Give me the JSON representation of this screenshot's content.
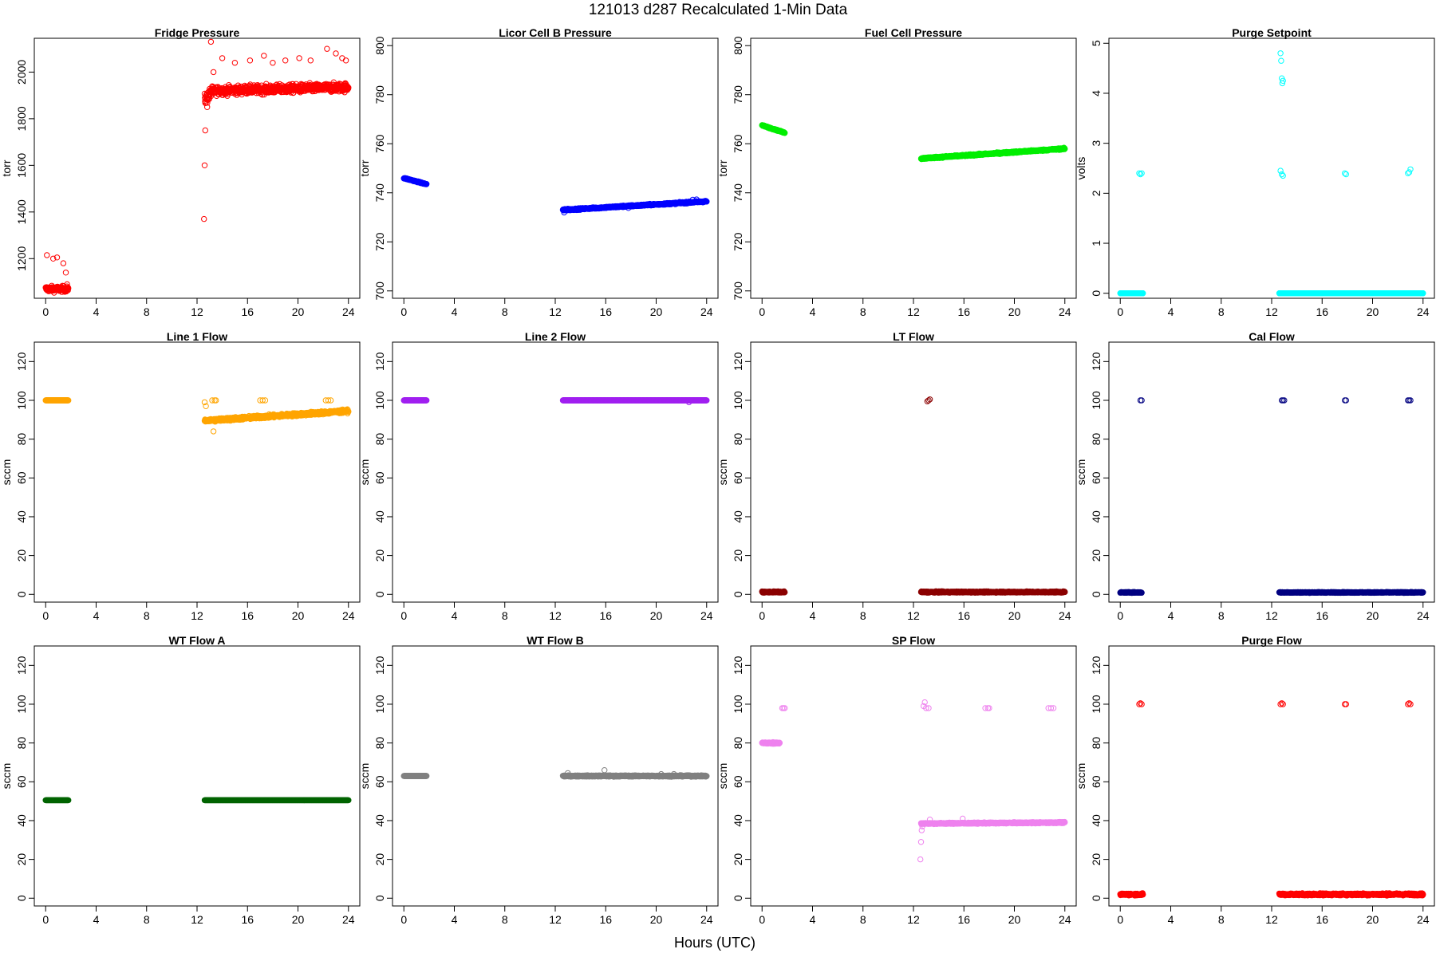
{
  "figure": {
    "title": "121013   d287   Recalculated 1-Min Data",
    "xlabel": "Hours (UTC)"
  },
  "chart_data": [
    {
      "type": "scatter",
      "title": "Fridge Pressure",
      "ylabel": "torr",
      "color": "#ff0000",
      "xlim": [
        -0.9,
        24.9
      ],
      "ylim": [
        1030,
        2145
      ],
      "xticks": [
        0,
        4,
        8,
        12,
        16,
        20,
        24
      ],
      "yticks": [
        1200,
        1400,
        1600,
        1800,
        2000
      ],
      "segments": [
        {
          "x0": 0.0,
          "x1": 1.8,
          "base": 1070,
          "drift": 0,
          "noise": 12,
          "outliers": [
            [
              0.1,
              1215
            ],
            [
              0.6,
              1200
            ],
            [
              0.9,
              1205
            ],
            [
              1.4,
              1180
            ],
            [
              1.6,
              1140
            ],
            [
              1.7,
              1090
            ]
          ]
        },
        {
          "x0": 12.6,
          "x1": 13.1,
          "base": 1880,
          "drift": 30,
          "noise": 25,
          "outliers": [
            [
              12.55,
              1370
            ],
            [
              12.6,
              1600
            ],
            [
              12.65,
              1750
            ],
            [
              12.8,
              1850
            ],
            [
              13.1,
              2130
            ],
            [
              13.3,
              2000
            ]
          ]
        },
        {
          "x0": 13.1,
          "x1": 24.0,
          "base": 1920,
          "drift": 15,
          "noise": 18,
          "outliers": [
            [
              14.0,
              2060
            ],
            [
              15.0,
              2040
            ],
            [
              16.2,
              2050
            ],
            [
              17.3,
              2070
            ],
            [
              18.0,
              2040
            ],
            [
              19.0,
              2050
            ],
            [
              20.1,
              2060
            ],
            [
              21.0,
              2050
            ],
            [
              22.3,
              2100
            ],
            [
              23.0,
              2080
            ],
            [
              23.5,
              2060
            ],
            [
              23.8,
              2050
            ]
          ]
        }
      ]
    },
    {
      "type": "scatter",
      "title": "Licor Cell B Pressure",
      "ylabel": "torr",
      "color": "#0000ff",
      "xlim": [
        -0.9,
        24.9
      ],
      "ylim": [
        697,
        803
      ],
      "xticks": [
        0,
        4,
        8,
        12,
        16,
        20,
        24
      ],
      "yticks": [
        700,
        720,
        740,
        760,
        780,
        800
      ],
      "segments": [
        {
          "x0": 0.0,
          "x1": 1.8,
          "base": 746,
          "drift": -2.5,
          "noise": 0.2,
          "outliers": []
        },
        {
          "x0": 12.6,
          "x1": 24.0,
          "base": 733,
          "drift": 3.5,
          "noise": 0.3,
          "outliers": [
            [
              12.7,
              732
            ],
            [
              13.0,
              733.5
            ],
            [
              17.8,
              733.8
            ],
            [
              22.9,
              737.2
            ],
            [
              23.2,
              737.3
            ]
          ]
        }
      ]
    },
    {
      "type": "scatter",
      "title": "Fuel Cell Pressure",
      "ylabel": "torr",
      "color": "#00ee00",
      "xlim": [
        -0.9,
        24.9
      ],
      "ylim": [
        697,
        803
      ],
      "xticks": [
        0,
        4,
        8,
        12,
        16,
        20,
        24
      ],
      "yticks": [
        700,
        720,
        740,
        760,
        780,
        800
      ],
      "segments": [
        {
          "x0": 0.0,
          "x1": 1.8,
          "base": 767.5,
          "drift": -3,
          "noise": 0.2,
          "outliers": []
        },
        {
          "x0": 12.6,
          "x1": 24.0,
          "base": 754,
          "drift": 4,
          "noise": 0.3,
          "outliers": []
        }
      ]
    },
    {
      "type": "scatter",
      "title": "Purge Setpoint",
      "ylabel": "volts",
      "color": "#00ffff",
      "xlim": [
        -0.9,
        24.9
      ],
      "ylim": [
        -0.1,
        5.1
      ],
      "xticks": [
        0,
        4,
        8,
        12,
        16,
        20,
        24
      ],
      "yticks": [
        0,
        1,
        2,
        3,
        4,
        5
      ],
      "segments": [
        {
          "x0": 0.0,
          "x1": 1.8,
          "base": 0.0,
          "drift": 0,
          "noise": 0,
          "outliers": [
            [
              1.5,
              2.4
            ],
            [
              1.6,
              2.38
            ],
            [
              1.7,
              2.4
            ]
          ]
        },
        {
          "x0": 12.6,
          "x1": 24.0,
          "base": 0.0,
          "drift": 0,
          "noise": 0,
          "outliers": [
            [
              12.7,
              4.8
            ],
            [
              12.75,
              4.65
            ],
            [
              12.8,
              4.3
            ],
            [
              12.85,
              4.2
            ],
            [
              12.9,
              4.25
            ],
            [
              12.7,
              2.45
            ],
            [
              12.8,
              2.38
            ],
            [
              12.9,
              2.35
            ],
            [
              17.8,
              2.4
            ],
            [
              17.9,
              2.38
            ],
            [
              22.8,
              2.4
            ],
            [
              22.9,
              2.42
            ],
            [
              23.0,
              2.48
            ]
          ]
        }
      ]
    },
    {
      "type": "scatter",
      "title": "Line 1 Flow",
      "ylabel": "sccm",
      "color": "#ffa500",
      "xlim": [
        -0.9,
        24.9
      ],
      "ylim": [
        -4,
        130
      ],
      "xticks": [
        0,
        4,
        8,
        12,
        16,
        20,
        24
      ],
      "yticks": [
        0,
        20,
        40,
        60,
        80,
        100,
        120
      ],
      "segments": [
        {
          "x0": 0.0,
          "x1": 1.8,
          "base": 100,
          "drift": 0,
          "noise": 0,
          "outliers": []
        },
        {
          "x0": 12.6,
          "x1": 24.0,
          "base": 89.5,
          "drift": 5,
          "noise": 0.8,
          "outliers": [
            [
              12.6,
              99
            ],
            [
              12.7,
              97
            ],
            [
              12.65,
              90
            ],
            [
              13.3,
              84
            ],
            [
              13.2,
              100
            ],
            [
              13.4,
              100
            ],
            [
              13.5,
              100
            ],
            [
              17.0,
              100
            ],
            [
              17.2,
              100
            ],
            [
              17.4,
              100
            ],
            [
              22.2,
              100
            ],
            [
              22.4,
              100
            ],
            [
              22.6,
              100
            ]
          ]
        }
      ]
    },
    {
      "type": "scatter",
      "title": "Line 2 Flow",
      "ylabel": "sccm",
      "color": "#a020f0",
      "xlim": [
        -0.9,
        24.9
      ],
      "ylim": [
        -4,
        130
      ],
      "xticks": [
        0,
        4,
        8,
        12,
        16,
        20,
        24
      ],
      "yticks": [
        0,
        20,
        40,
        60,
        80,
        100,
        120
      ],
      "segments": [
        {
          "x0": 0.0,
          "x1": 1.8,
          "base": 100,
          "drift": 0,
          "noise": 0,
          "outliers": []
        },
        {
          "x0": 12.6,
          "x1": 24.0,
          "base": 100,
          "drift": 0,
          "noise": 0,
          "outliers": [
            [
              22.6,
              99
            ]
          ]
        }
      ]
    },
    {
      "type": "scatter",
      "title": "LT Flow",
      "ylabel": "sccm",
      "color": "#8b0000",
      "xlim": [
        -0.9,
        24.9
      ],
      "ylim": [
        -4,
        130
      ],
      "xticks": [
        0,
        4,
        8,
        12,
        16,
        20,
        24
      ],
      "yticks": [
        0,
        20,
        40,
        60,
        80,
        100,
        120
      ],
      "segments": [
        {
          "x0": 0.0,
          "x1": 1.8,
          "base": 1.2,
          "drift": 0,
          "noise": 0.3,
          "outliers": []
        },
        {
          "x0": 12.6,
          "x1": 24.0,
          "base": 1.2,
          "drift": 0,
          "noise": 0.3,
          "outliers": [
            [
              13.1,
              99.5
            ],
            [
              13.2,
              100
            ],
            [
              13.3,
              100.5
            ]
          ]
        }
      ]
    },
    {
      "type": "scatter",
      "title": "Cal Flow",
      "ylabel": "sccm",
      "color": "#000080",
      "xlim": [
        -0.9,
        24.9
      ],
      "ylim": [
        -4,
        130
      ],
      "xticks": [
        0,
        4,
        8,
        12,
        16,
        20,
        24
      ],
      "yticks": [
        0,
        20,
        40,
        60,
        80,
        100,
        120
      ],
      "segments": [
        {
          "x0": 0.0,
          "x1": 1.7,
          "base": 1.0,
          "drift": 0,
          "noise": 0.2,
          "outliers": [
            [
              1.6,
              100
            ],
            [
              1.7,
              100
            ]
          ]
        },
        {
          "x0": 12.6,
          "x1": 24.0,
          "base": 1.0,
          "drift": 0,
          "noise": 0.2,
          "outliers": [
            [
              12.8,
              100
            ],
            [
              12.9,
              100
            ],
            [
              13.0,
              100
            ],
            [
              17.8,
              100
            ],
            [
              17.9,
              100
            ],
            [
              22.8,
              100
            ],
            [
              22.9,
              100
            ],
            [
              23.0,
              100
            ]
          ]
        }
      ]
    },
    {
      "type": "scatter",
      "title": "WT Flow A",
      "ylabel": "sccm",
      "color": "#006400",
      "xlim": [
        -0.9,
        24.9
      ],
      "ylim": [
        -4,
        130
      ],
      "xticks": [
        0,
        4,
        8,
        12,
        16,
        20,
        24
      ],
      "yticks": [
        0,
        20,
        40,
        60,
        80,
        100,
        120
      ],
      "segments": [
        {
          "x0": 0.0,
          "x1": 1.8,
          "base": 50.5,
          "drift": 0,
          "noise": 0,
          "outliers": []
        },
        {
          "x0": 12.6,
          "x1": 24.0,
          "base": 50.5,
          "drift": 0,
          "noise": 0,
          "outliers": []
        }
      ]
    },
    {
      "type": "scatter",
      "title": "WT Flow B",
      "ylabel": "sccm",
      "color": "#808080",
      "xlim": [
        -0.9,
        24.9
      ],
      "ylim": [
        -4,
        130
      ],
      "xticks": [
        0,
        4,
        8,
        12,
        16,
        20,
        24
      ],
      "yticks": [
        0,
        20,
        40,
        60,
        80,
        100,
        120
      ],
      "segments": [
        {
          "x0": 0.0,
          "x1": 1.8,
          "base": 63,
          "drift": 0,
          "noise": 0,
          "outliers": []
        },
        {
          "x0": 12.6,
          "x1": 24.0,
          "base": 63,
          "drift": 0,
          "noise": 0.3,
          "outliers": [
            [
              13.0,
              64.5
            ],
            [
              15.9,
              66
            ],
            [
              20.4,
              64
            ],
            [
              21.4,
              64
            ]
          ]
        }
      ]
    },
    {
      "type": "scatter",
      "title": "SP Flow",
      "ylabel": "sccm",
      "color": "#ee82ee",
      "xlim": [
        -0.9,
        24.9
      ],
      "ylim": [
        -4,
        130
      ],
      "xticks": [
        0,
        4,
        8,
        12,
        16,
        20,
        24
      ],
      "yticks": [
        0,
        20,
        40,
        60,
        80,
        100,
        120
      ],
      "segments": [
        {
          "x0": 0.0,
          "x1": 1.4,
          "base": 80,
          "drift": 0,
          "noise": 0.4,
          "outliers": [
            [
              1.6,
              98
            ],
            [
              1.7,
              98
            ],
            [
              1.8,
              98
            ]
          ]
        },
        {
          "x0": 12.6,
          "x1": 24.0,
          "base": 38.5,
          "drift": 0.5,
          "noise": 0.3,
          "outliers": [
            [
              12.55,
              20
            ],
            [
              12.6,
              29
            ],
            [
              12.65,
              35
            ],
            [
              12.7,
              37
            ],
            [
              12.8,
              99
            ],
            [
              12.9,
              101
            ],
            [
              13.0,
              98
            ],
            [
              13.2,
              98
            ],
            [
              13.3,
              40.5
            ],
            [
              15.9,
              41
            ],
            [
              17.7,
              98
            ],
            [
              17.9,
              98
            ],
            [
              18.0,
              98
            ],
            [
              22.7,
              98
            ],
            [
              22.9,
              98
            ],
            [
              23.1,
              98
            ]
          ]
        }
      ]
    },
    {
      "type": "scatter",
      "title": "Purge Flow",
      "ylabel": "sccm",
      "color": "#ff0000",
      "xlim": [
        -0.9,
        24.9
      ],
      "ylim": [
        -4,
        130
      ],
      "xticks": [
        0,
        4,
        8,
        12,
        16,
        20,
        24
      ],
      "yticks": [
        0,
        20,
        40,
        60,
        80,
        100,
        120
      ],
      "segments": [
        {
          "x0": 0.0,
          "x1": 1.8,
          "base": 2.0,
          "drift": 0,
          "noise": 0.5,
          "outliers": [
            [
              1.5,
              100
            ],
            [
              1.6,
              100.5
            ],
            [
              1.7,
              100
            ]
          ]
        },
        {
          "x0": 12.6,
          "x1": 24.0,
          "base": 2.0,
          "drift": 0,
          "noise": 0.5,
          "outliers": [
            [
              12.7,
              100
            ],
            [
              12.8,
              100.5
            ],
            [
              12.9,
              100
            ],
            [
              17.8,
              100
            ],
            [
              17.9,
              100
            ],
            [
              22.8,
              100
            ],
            [
              22.9,
              100.5
            ],
            [
              23.0,
              100
            ]
          ]
        }
      ]
    }
  ]
}
